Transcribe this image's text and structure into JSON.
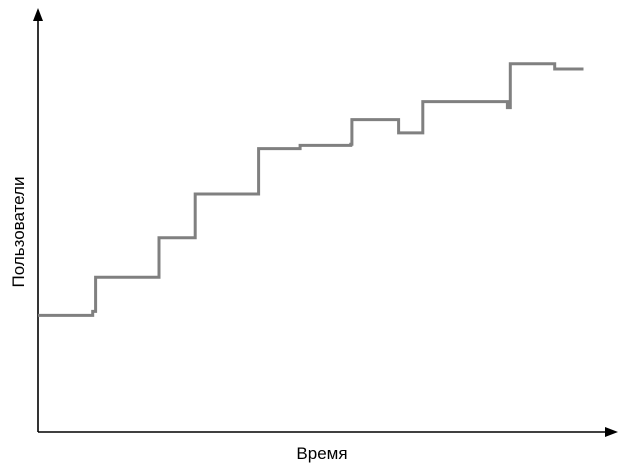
{
  "chart_data": {
    "type": "line",
    "step": true,
    "title": "",
    "xlabel": "Время",
    "ylabel": "Пользователи",
    "axis_ticks": false,
    "grid": false,
    "legend": "none",
    "series_color": "#808080",
    "axis_color": "#000000",
    "xlim": [
      0,
      100
    ],
    "ylim": [
      0,
      100
    ],
    "series": [
      {
        "points": [
          [
            0,
            29
          ],
          [
            9.5,
            29
          ],
          [
            9.5,
            30
          ],
          [
            10,
            30
          ],
          [
            10,
            38.5
          ],
          [
            21,
            38.5
          ],
          [
            21,
            48.3
          ],
          [
            27.3,
            48.3
          ],
          [
            27.3,
            59.2
          ],
          [
            38.3,
            59.2
          ],
          [
            38.3,
            70.5
          ],
          [
            45.5,
            70.5
          ],
          [
            45.5,
            71.3
          ],
          [
            54.3,
            71.3
          ],
          [
            54.3,
            71.6
          ],
          [
            54.5,
            71.6
          ],
          [
            54.5,
            77.7
          ],
          [
            62.6,
            77.7
          ],
          [
            62.6,
            74.4
          ],
          [
            66.8,
            74.4
          ],
          [
            66.8,
            82.2
          ],
          [
            81.5,
            82.2
          ],
          [
            81.5,
            80.7
          ],
          [
            82,
            80.7
          ],
          [
            82,
            91.6
          ],
          [
            89.7,
            91.6
          ],
          [
            89.7,
            90.3
          ],
          [
            94.7,
            90.3
          ]
        ]
      }
    ]
  }
}
